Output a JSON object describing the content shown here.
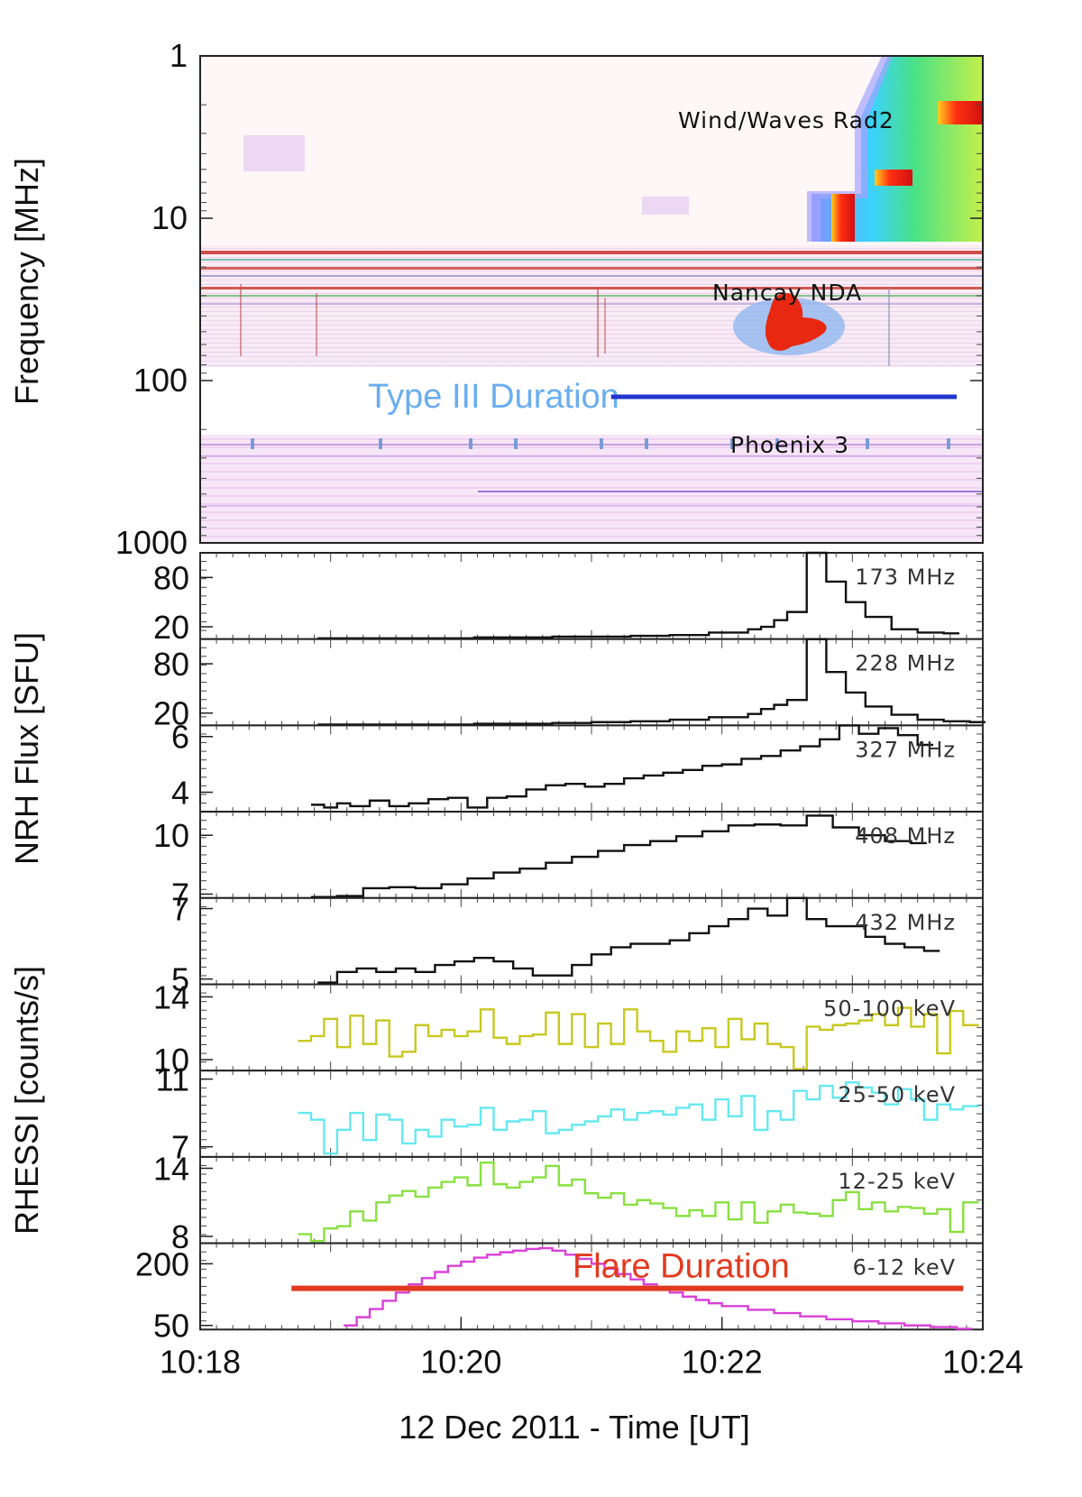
{
  "chart_data": {
    "type": "line",
    "x_range": [
      "10:18",
      "10:24"
    ],
    "x_ticks": [
      "10:18",
      "10:20",
      "10:22",
      "10:24"
    ],
    "xlabel": "12 Dec 2011 - Time [UT]",
    "group_labels": {
      "spectrogram": "Frequency [MHz]",
      "nrh": "NRH Flux [SFU]",
      "rhessi": "RHESSI [counts/s]"
    },
    "spectrogram": {
      "type": "heatmap",
      "y_scale": "log",
      "y_ticks": [
        "1",
        "10",
        "100",
        "1000"
      ],
      "ylim": [
        1,
        1000
      ],
      "instruments": [
        "Wind/Waves Rad2",
        "Nancay NDA",
        "Phoenix 3"
      ],
      "annotation_text": "Type III Duration",
      "annotation_span_min": [
        3.15,
        5.8
      ],
      "colors": {
        "annotation_text": "#6aaef0",
        "annotation_bar": "#2233cc"
      }
    },
    "panels": [
      {
        "label": "173 MHz",
        "group": "nrh",
        "color": "#111111",
        "y_ticks": [
          "80",
          "20"
        ],
        "ylim": [
          5,
          110
        ],
        "ytick_values": [
          80,
          20
        ],
        "x": [
          0.9,
          1.2,
          1.5,
          1.8,
          2.1,
          2.4,
          2.7,
          3.0,
          3.3,
          3.6,
          3.9,
          4.2,
          4.3,
          4.4,
          4.5,
          4.65,
          4.8,
          4.95,
          5.1,
          5.3,
          5.5,
          5.7
        ],
        "values": [
          6,
          6,
          6,
          6,
          7,
          7,
          8,
          8,
          9,
          10,
          13,
          17,
          20,
          28,
          38,
          110,
          75,
          50,
          32,
          17,
          13,
          12
        ]
      },
      {
        "label": "228 MHz",
        "group": "nrh",
        "color": "#111111",
        "y_ticks": [
          "80",
          "20"
        ],
        "ylim": [
          5,
          110
        ],
        "ytick_values": [
          80,
          20
        ],
        "x": [
          0.9,
          1.2,
          1.5,
          1.8,
          2.1,
          2.4,
          2.7,
          3.0,
          3.3,
          3.6,
          3.9,
          4.2,
          4.3,
          4.4,
          4.5,
          4.65,
          4.8,
          4.95,
          5.1,
          5.3,
          5.5,
          5.7,
          5.9
        ],
        "values": [
          6,
          6,
          6,
          6,
          7,
          7,
          8,
          9,
          10,
          12,
          15,
          19,
          25,
          30,
          36,
          110,
          70,
          45,
          28,
          18,
          12,
          10,
          9
        ]
      },
      {
        "label": "327 MHz",
        "group": "nrh",
        "color": "#111111",
        "y_ticks": [
          "6",
          "4"
        ],
        "ylim": [
          3.3,
          6.4
        ],
        "ytick_values": [
          6,
          4
        ],
        "x": [
          0.85,
          0.95,
          1.05,
          1.15,
          1.3,
          1.45,
          1.6,
          1.75,
          1.9,
          2.05,
          2.2,
          2.35,
          2.5,
          2.65,
          2.8,
          2.95,
          3.1,
          3.25,
          3.4,
          3.55,
          3.7,
          3.85,
          4.0,
          4.15,
          4.3,
          4.45,
          4.6,
          4.75,
          4.9,
          5.05,
          5.2,
          5.35,
          5.5
        ],
        "values": [
          3.55,
          3.45,
          3.6,
          3.5,
          3.7,
          3.5,
          3.6,
          3.75,
          3.8,
          3.45,
          3.8,
          3.85,
          4.1,
          4.25,
          4.3,
          4.2,
          4.3,
          4.5,
          4.6,
          4.7,
          4.8,
          4.95,
          5.0,
          5.2,
          5.3,
          5.5,
          5.65,
          5.9,
          6.4,
          6.1,
          6.3,
          6.05,
          5.7
        ]
      },
      {
        "label": "408 MHz",
        "group": "nrh",
        "color": "#111111",
        "y_ticks": [
          "10",
          "7"
        ],
        "ylim": [
          6.8,
          11.2
        ],
        "ytick_values": [
          10,
          7
        ],
        "x": [
          0.85,
          1.05,
          1.25,
          1.45,
          1.65,
          1.85,
          2.05,
          2.25,
          2.45,
          2.65,
          2.85,
          3.05,
          3.25,
          3.45,
          3.65,
          3.85,
          4.05,
          4.25,
          4.45,
          4.65,
          4.85,
          5.05,
          5.25,
          5.45
        ],
        "values": [
          6.85,
          6.9,
          7.3,
          7.35,
          7.3,
          7.5,
          7.8,
          8.1,
          8.3,
          8.6,
          8.9,
          9.2,
          9.5,
          9.7,
          9.95,
          10.2,
          10.5,
          10.55,
          10.5,
          11.0,
          10.4,
          10.0,
          9.7,
          9.6
        ]
      },
      {
        "label": "432 MHz",
        "group": "nrh",
        "color": "#111111",
        "y_ticks": [
          "7",
          "5"
        ],
        "ylim": [
          4.85,
          7.3
        ],
        "ytick_values": [
          7,
          5
        ],
        "x": [
          0.9,
          1.05,
          1.2,
          1.35,
          1.5,
          1.65,
          1.8,
          1.95,
          2.1,
          2.25,
          2.4,
          2.55,
          2.7,
          2.85,
          3.0,
          3.15,
          3.3,
          3.45,
          3.6,
          3.75,
          3.9,
          4.05,
          4.2,
          4.35,
          4.5,
          4.65,
          4.8,
          4.95,
          5.1,
          5.25,
          5.4,
          5.55
        ],
        "values": [
          4.9,
          5.2,
          5.3,
          5.2,
          5.3,
          5.2,
          5.4,
          5.5,
          5.6,
          5.5,
          5.3,
          5.1,
          5.1,
          5.4,
          5.7,
          5.9,
          6.0,
          6.0,
          6.1,
          6.3,
          6.5,
          6.7,
          7.0,
          6.8,
          7.3,
          6.7,
          6.5,
          6.5,
          6.2,
          6.0,
          5.9,
          5.8
        ]
      },
      {
        "label": "50-100 keV",
        "group": "rhessi",
        "color": "#c8c820",
        "y_ticks": [
          "14",
          "10"
        ],
        "ylim": [
          9.3,
          14.8
        ],
        "ytick_values": [
          14,
          10
        ],
        "x": [
          0.75,
          0.85,
          0.95,
          1.05,
          1.15,
          1.25,
          1.35,
          1.45,
          1.55,
          1.65,
          1.75,
          1.85,
          1.95,
          2.05,
          2.15,
          2.25,
          2.35,
          2.45,
          2.55,
          2.65,
          2.75,
          2.85,
          2.95,
          3.05,
          3.15,
          3.25,
          3.35,
          3.45,
          3.55,
          3.65,
          3.75,
          3.85,
          3.95,
          4.05,
          4.15,
          4.25,
          4.35,
          4.45,
          4.55,
          4.65,
          4.75,
          4.85,
          4.95,
          5.05,
          5.15,
          5.25,
          5.35,
          5.45,
          5.55,
          5.65,
          5.75,
          5.85
        ],
        "values": [
          11.2,
          11.5,
          12.6,
          10.8,
          12.8,
          11.0,
          12.5,
          10.2,
          10.5,
          12.2,
          11.5,
          11.9,
          11.5,
          11.8,
          13.2,
          11.4,
          11.0,
          11.5,
          11.6,
          13.0,
          11.0,
          12.9,
          10.8,
          12.3,
          11.0,
          13.2,
          11.8,
          11.2,
          10.5,
          11.8,
          11.2,
          12.0,
          10.8,
          12.6,
          11.3,
          12.3,
          11.0,
          10.8,
          9.4,
          12.1,
          11.9,
          12.2,
          12.3,
          12.5,
          12.9,
          12.2,
          13.3,
          12.1,
          12.9,
          10.4,
          13.1,
          12.2
        ]
      },
      {
        "label": "25-50 keV",
        "group": "rhessi",
        "color": "#66e8f0",
        "y_ticks": [
          "11",
          "7"
        ],
        "ylim": [
          6.4,
          11.5
        ],
        "ytick_values": [
          11,
          7
        ],
        "x": [
          0.75,
          0.85,
          0.95,
          1.05,
          1.15,
          1.25,
          1.35,
          1.45,
          1.55,
          1.65,
          1.75,
          1.85,
          1.95,
          2.05,
          2.15,
          2.25,
          2.35,
          2.45,
          2.55,
          2.65,
          2.75,
          2.85,
          2.95,
          3.05,
          3.15,
          3.25,
          3.35,
          3.45,
          3.55,
          3.65,
          3.75,
          3.85,
          3.95,
          4.05,
          4.15,
          4.25,
          4.35,
          4.45,
          4.55,
          4.65,
          4.75,
          4.85,
          4.95,
          5.05,
          5.15,
          5.25,
          5.35,
          5.45,
          5.55,
          5.65,
          5.75,
          5.85
        ],
        "values": [
          9.0,
          8.6,
          6.6,
          8.0,
          9.0,
          7.4,
          8.9,
          8.6,
          7.2,
          8.0,
          7.6,
          8.6,
          8.2,
          8.3,
          9.3,
          8.0,
          8.5,
          8.6,
          9.1,
          7.8,
          8.0,
          8.3,
          8.5,
          8.8,
          9.2,
          8.6,
          9.0,
          9.1,
          8.9,
          9.3,
          9.5,
          8.6,
          9.8,
          8.8,
          10.0,
          8.0,
          9.1,
          8.6,
          10.3,
          9.8,
          10.6,
          9.9,
          10.8,
          10.5,
          10.2,
          9.5,
          10.4,
          9.8,
          8.6,
          9.5,
          9.2,
          9.4
        ]
      },
      {
        "label": "12-25 keV",
        "group": "rhessi",
        "color": "#88e040",
        "y_ticks": [
          "14",
          "8"
        ],
        "ylim": [
          7.4,
          15.0
        ],
        "ytick_values": [
          14,
          8
        ],
        "x": [
          0.75,
          0.85,
          0.95,
          1.05,
          1.15,
          1.25,
          1.35,
          1.45,
          1.55,
          1.65,
          1.75,
          1.85,
          1.95,
          2.05,
          2.15,
          2.25,
          2.35,
          2.45,
          2.55,
          2.65,
          2.75,
          2.85,
          2.95,
          3.05,
          3.15,
          3.25,
          3.35,
          3.45,
          3.55,
          3.65,
          3.75,
          3.85,
          3.95,
          4.05,
          4.15,
          4.25,
          4.35,
          4.45,
          4.55,
          4.65,
          4.75,
          4.85,
          4.95,
          5.05,
          5.15,
          5.25,
          5.35,
          5.45,
          5.55,
          5.65,
          5.75,
          5.85
        ],
        "values": [
          8.2,
          7.6,
          8.7,
          8.9,
          10.2,
          9.4,
          11.0,
          11.6,
          12.0,
          11.5,
          12.3,
          12.8,
          13.2,
          12.5,
          14.5,
          12.6,
          12.3,
          12.8,
          13.2,
          14.2,
          12.5,
          13.0,
          11.8,
          11.4,
          11.8,
          10.8,
          11.2,
          10.9,
          10.5,
          9.8,
          10.3,
          9.8,
          11.0,
          9.5,
          11.0,
          9.2,
          10.2,
          10.8,
          10.1,
          10.0,
          9.8,
          11.2,
          11.9,
          10.4,
          11.0,
          10.2,
          10.6,
          10.5,
          10.0,
          10.4,
          8.4,
          11.0
        ]
      },
      {
        "label": "6-12 keV",
        "group": "rhessi",
        "color": "#d840d8",
        "y_ticks": [
          "200",
          "50"
        ],
        "ylim": [
          40,
          250
        ],
        "ytick_values": [
          200,
          50
        ],
        "x": [
          1.1,
          1.2,
          1.3,
          1.4,
          1.5,
          1.6,
          1.7,
          1.8,
          1.9,
          2.0,
          2.1,
          2.2,
          2.3,
          2.4,
          2.5,
          2.6,
          2.7,
          2.8,
          2.9,
          3.0,
          3.1,
          3.2,
          3.3,
          3.4,
          3.5,
          3.6,
          3.7,
          3.8,
          3.9,
          4.0,
          4.2,
          4.4,
          4.6,
          4.8,
          5.0,
          5.2,
          5.4,
          5.6,
          5.8
        ],
        "values": [
          50,
          70,
          90,
          110,
          130,
          150,
          165,
          180,
          195,
          205,
          215,
          222,
          228,
          232,
          236,
          238,
          232,
          222,
          212,
          200,
          188,
          175,
          162,
          150,
          140,
          130,
          120,
          112,
          104,
          97,
          88,
          80,
          72,
          65,
          60,
          55,
          50,
          46,
          42
        ],
        "annotation_text": "Flare Duration",
        "annotation_span_min": [
          0.7,
          5.85
        ],
        "colors": {
          "annotation": "#e23a20"
        }
      }
    ]
  }
}
